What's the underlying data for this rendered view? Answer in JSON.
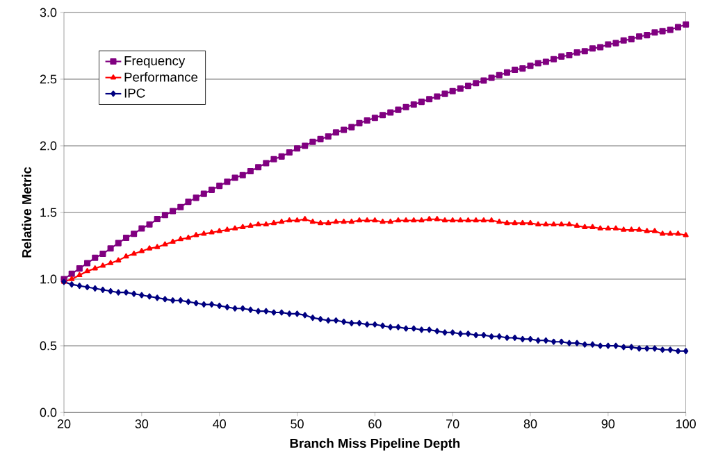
{
  "chart_data": {
    "type": "line",
    "xlabel": "Branch Miss Pipeline Depth",
    "ylabel": "Relative Metric",
    "x": [
      20,
      21,
      22,
      23,
      24,
      25,
      26,
      27,
      28,
      29,
      30,
      31,
      32,
      33,
      34,
      35,
      36,
      37,
      38,
      39,
      40,
      41,
      42,
      43,
      44,
      45,
      46,
      47,
      48,
      49,
      50,
      51,
      52,
      53,
      54,
      55,
      56,
      57,
      58,
      59,
      60,
      61,
      62,
      63,
      64,
      65,
      66,
      67,
      68,
      69,
      70,
      71,
      72,
      73,
      74,
      75,
      76,
      77,
      78,
      79,
      80,
      81,
      82,
      83,
      84,
      85,
      86,
      87,
      88,
      89,
      90,
      91,
      92,
      93,
      94,
      95,
      96,
      97,
      98,
      99,
      100
    ],
    "xlim": [
      20,
      100
    ],
    "xticks": [
      20,
      30,
      40,
      50,
      60,
      70,
      80,
      90,
      100
    ],
    "ylim": [
      0,
      3
    ],
    "yticks": [
      {
        "value": 0,
        "label": "0.0"
      },
      {
        "value": 0.5,
        "label": "0.5"
      },
      {
        "value": 1,
        "label": "1.0"
      },
      {
        "value": 1.5,
        "label": "1.5"
      },
      {
        "value": 2,
        "label": "2.0"
      },
      {
        "value": 2.5,
        "label": "2.5"
      },
      {
        "value": 3,
        "label": "3.0"
      }
    ],
    "grid": "y",
    "legend": "top left",
    "series": [
      {
        "name": "Frequency",
        "color": "#800080",
        "marker": "square",
        "values": [
          1.0,
          1.04,
          1.08,
          1.12,
          1.16,
          1.19,
          1.23,
          1.27,
          1.31,
          1.34,
          1.38,
          1.41,
          1.45,
          1.48,
          1.51,
          1.54,
          1.58,
          1.61,
          1.64,
          1.67,
          1.7,
          1.73,
          1.76,
          1.78,
          1.81,
          1.84,
          1.87,
          1.9,
          1.92,
          1.95,
          1.98,
          2.0,
          2.03,
          2.05,
          2.07,
          2.1,
          2.12,
          2.14,
          2.17,
          2.19,
          2.21,
          2.23,
          2.25,
          2.27,
          2.29,
          2.31,
          2.33,
          2.35,
          2.37,
          2.39,
          2.41,
          2.43,
          2.45,
          2.47,
          2.49,
          2.51,
          2.53,
          2.55,
          2.57,
          2.58,
          2.6,
          2.62,
          2.63,
          2.65,
          2.67,
          2.68,
          2.7,
          2.71,
          2.73,
          2.74,
          2.76,
          2.77,
          2.79,
          2.8,
          2.82,
          2.83,
          2.85,
          2.86,
          2.87,
          2.89,
          2.91
        ]
      },
      {
        "name": "Performance",
        "color": "#ff0000",
        "marker": "triangle",
        "values": [
          0.98,
          1.0,
          1.03,
          1.06,
          1.08,
          1.1,
          1.12,
          1.14,
          1.17,
          1.19,
          1.21,
          1.23,
          1.24,
          1.26,
          1.28,
          1.3,
          1.31,
          1.33,
          1.34,
          1.35,
          1.36,
          1.37,
          1.38,
          1.39,
          1.4,
          1.41,
          1.41,
          1.42,
          1.43,
          1.44,
          1.44,
          1.45,
          1.43,
          1.42,
          1.42,
          1.43,
          1.43,
          1.43,
          1.44,
          1.44,
          1.44,
          1.43,
          1.43,
          1.44,
          1.44,
          1.44,
          1.44,
          1.45,
          1.45,
          1.44,
          1.44,
          1.44,
          1.44,
          1.44,
          1.44,
          1.44,
          1.43,
          1.42,
          1.42,
          1.42,
          1.42,
          1.41,
          1.41,
          1.41,
          1.41,
          1.41,
          1.4,
          1.39,
          1.39,
          1.38,
          1.38,
          1.38,
          1.37,
          1.37,
          1.37,
          1.36,
          1.36,
          1.34,
          1.34,
          1.34,
          1.33
        ]
      },
      {
        "name": "IPC",
        "color": "#000080",
        "marker": "diamond",
        "values": [
          0.98,
          0.96,
          0.95,
          0.94,
          0.93,
          0.92,
          0.91,
          0.9,
          0.9,
          0.89,
          0.88,
          0.87,
          0.86,
          0.85,
          0.84,
          0.84,
          0.83,
          0.82,
          0.81,
          0.81,
          0.8,
          0.79,
          0.78,
          0.78,
          0.77,
          0.76,
          0.76,
          0.75,
          0.75,
          0.74,
          0.74,
          0.73,
          0.71,
          0.7,
          0.69,
          0.69,
          0.68,
          0.67,
          0.67,
          0.66,
          0.66,
          0.65,
          0.64,
          0.64,
          0.63,
          0.63,
          0.62,
          0.62,
          0.61,
          0.6,
          0.6,
          0.59,
          0.59,
          0.58,
          0.58,
          0.57,
          0.57,
          0.56,
          0.56,
          0.55,
          0.55,
          0.54,
          0.54,
          0.53,
          0.53,
          0.52,
          0.52,
          0.51,
          0.51,
          0.5,
          0.5,
          0.5,
          0.49,
          0.49,
          0.48,
          0.48,
          0.48,
          0.47,
          0.47,
          0.46,
          0.46
        ]
      }
    ]
  }
}
